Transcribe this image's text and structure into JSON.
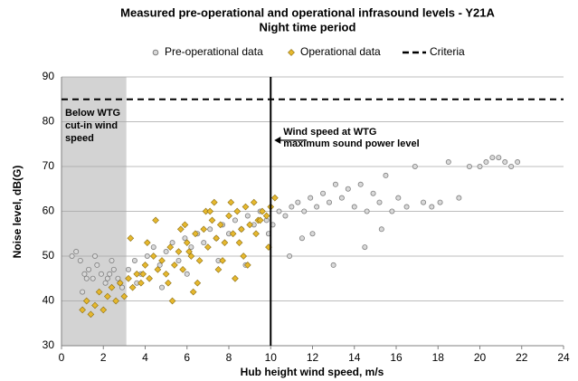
{
  "chart_data": {
    "type": "scatter",
    "title": "Measured pre-operational and operational infrasound levels - Y21A",
    "subtitle": "Night time period",
    "xlabel": "Hub height wind speed, m/s",
    "ylabel": "Noise level, dB(G)",
    "xlim": [
      0,
      24
    ],
    "xticks": [
      0,
      2,
      4,
      6,
      8,
      10,
      12,
      14,
      16,
      18,
      20,
      22,
      24
    ],
    "ylim": [
      30,
      90
    ],
    "yticks": [
      30,
      40,
      50,
      60,
      70,
      80,
      90
    ],
    "grid": true,
    "shaded_xrange": [
      0,
      3.1
    ],
    "shaded_color": "#d3d3d3",
    "vline": 10,
    "annotations": [
      {
        "lines": [
          "Below WTG",
          "cut-in wind",
          "speed"
        ]
      },
      {
        "lines": [
          "Wind speed at WTG",
          "maximum sound power level"
        ]
      }
    ],
    "series": [
      {
        "name": "Pre-operational data",
        "marker": "circle",
        "color": "#d9d9d9",
        "edge": "#7f7f7f",
        "x": [
          0.5,
          0.7,
          0.9,
          1.1,
          1.3,
          1.5,
          1.7,
          1.9,
          2.1,
          2.3,
          2.5,
          2.7,
          2.9,
          1.0,
          1.6,
          2.2,
          2.8,
          3.2,
          3.5,
          3.8,
          4.1,
          4.4,
          4.7,
          5.0,
          5.3,
          5.6,
          5.9,
          6.2,
          6.5,
          6.8,
          7.1,
          7.4,
          7.7,
          8.0,
          8.3,
          8.6,
          8.9,
          9.2,
          9.5,
          9.8,
          10.1,
          10.4,
          10.7,
          11.0,
          11.3,
          11.6,
          11.9,
          12.2,
          12.5,
          12.8,
          13.1,
          13.4,
          13.7,
          14.0,
          14.3,
          14.6,
          14.9,
          15.2,
          15.5,
          15.8,
          16.1,
          16.5,
          16.9,
          17.3,
          17.7,
          18.1,
          18.5,
          19.0,
          19.5,
          20.0,
          20.3,
          20.6,
          20.9,
          21.2,
          21.5,
          21.8,
          13.0,
          14.5,
          15.3,
          12.0,
          11.5,
          10.9,
          9.9,
          8.8,
          7.5,
          6.0,
          4.8,
          3.6,
          2.4,
          1.2
        ],
        "values": [
          50,
          51,
          49,
          46,
          47,
          45,
          48,
          46,
          44,
          46,
          47,
          45,
          43,
          42,
          50,
          45,
          44,
          47,
          49,
          46,
          50,
          52,
          48,
          51,
          53,
          49,
          54,
          52,
          55,
          53,
          56,
          54,
          57,
          55,
          58,
          56,
          59,
          57,
          60,
          58,
          57,
          60,
          59,
          61,
          62,
          60,
          63,
          61,
          64,
          62,
          66,
          63,
          65,
          61,
          66,
          60,
          64,
          62,
          68,
          60,
          63,
          61,
          70,
          62,
          61,
          62,
          71,
          63,
          70,
          70,
          71,
          72,
          72,
          71,
          70,
          71,
          48,
          52,
          56,
          55,
          54,
          50,
          55,
          48,
          49,
          46,
          43,
          44,
          49,
          45
        ]
      },
      {
        "name": "Operational data",
        "marker": "diamond",
        "color": "#e6b82e",
        "edge": "#8a6d10",
        "x": [
          1.0,
          1.2,
          1.4,
          1.6,
          1.8,
          2.0,
          2.2,
          2.4,
          2.6,
          2.8,
          3.0,
          3.2,
          3.4,
          3.6,
          3.8,
          4.0,
          4.2,
          4.4,
          4.6,
          4.8,
          5.0,
          5.2,
          5.4,
          5.6,
          5.8,
          6.0,
          6.2,
          6.4,
          6.6,
          6.8,
          7.0,
          7.2,
          7.4,
          7.6,
          7.8,
          8.0,
          8.2,
          8.4,
          8.6,
          8.8,
          9.0,
          9.2,
          9.4,
          9.6,
          9.8,
          10.0,
          10.2,
          3.3,
          3.9,
          4.5,
          5.1,
          5.7,
          6.3,
          6.9,
          7.5,
          8.1,
          8.7,
          9.3,
          9.9,
          4.1,
          5.3,
          6.5,
          7.7,
          8.9,
          5.9,
          7.1,
          8.3,
          9.5,
          6.1,
          7.3,
          8.5
        ],
        "values": [
          38,
          40,
          37,
          39,
          42,
          38,
          41,
          43,
          40,
          44,
          41,
          45,
          43,
          46,
          44,
          48,
          45,
          50,
          47,
          49,
          46,
          52,
          48,
          51,
          47,
          53,
          50,
          55,
          49,
          56,
          52,
          58,
          54,
          57,
          53,
          59,
          55,
          60,
          56,
          61,
          57,
          62,
          58,
          60,
          59,
          61,
          63,
          54,
          46,
          58,
          44,
          56,
          42,
          60,
          47,
          62,
          50,
          55,
          52,
          53,
          40,
          44,
          49,
          48,
          57,
          60,
          45,
          58,
          51,
          62,
          53
        ]
      },
      {
        "name": "Criteria",
        "marker": "dash",
        "color": "#000000",
        "x": [
          0,
          24
        ],
        "values": [
          85,
          85
        ]
      }
    ]
  }
}
